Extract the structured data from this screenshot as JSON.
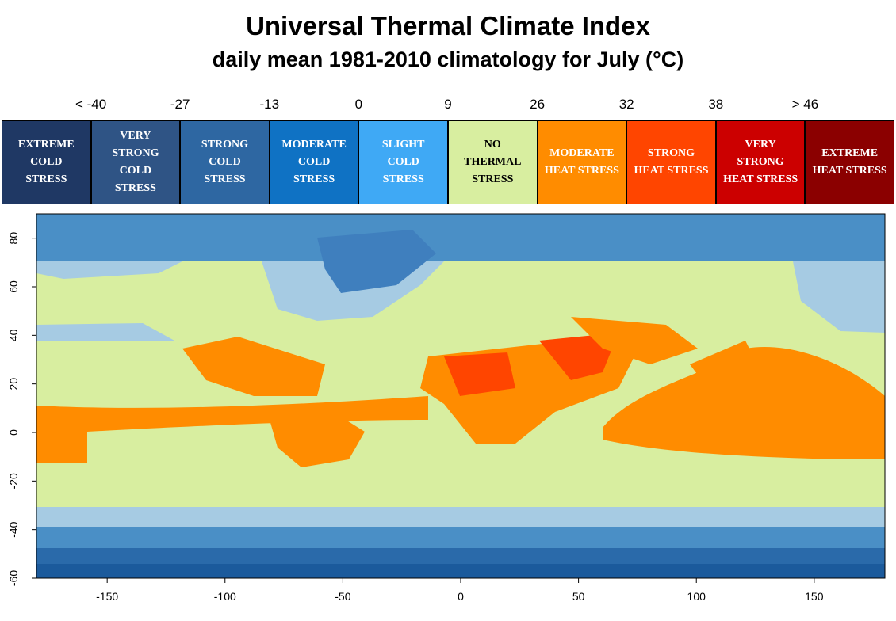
{
  "header": {
    "title": "Universal Thermal Climate Index",
    "subtitle": "daily mean 1981-2010 climatology for July (°C)"
  },
  "legend": {
    "thresholds": [
      "< -40",
      "-27",
      "-13",
      "0",
      "9",
      "26",
      "32",
      "38",
      "> 46"
    ],
    "categories": [
      {
        "label": "EXTREME COLD STRESS",
        "color": "#1f3864"
      },
      {
        "label": "VERY STRONG COLD STRESS",
        "color": "#2f5485"
      },
      {
        "label": "STRONG COLD STRESS",
        "color": "#2e67a2"
      },
      {
        "label": "MODERATE COLD STRESS",
        "color": "#0f72c4"
      },
      {
        "label": "SLIGHT COLD STRESS",
        "color": "#3fa9f5"
      },
      {
        "label": "NO THERMAL STRESS",
        "color": "#d8eea0"
      },
      {
        "label": "MODERATE HEAT STRESS",
        "color": "#ff8c00"
      },
      {
        "label": "STRONG HEAT STRESS",
        "color": "#ff4500"
      },
      {
        "label": "VERY STRONG HEAT STRESS",
        "color": "#cc0000"
      },
      {
        "label": "EXTREME HEAT STRESS",
        "color": "#8b0000"
      }
    ]
  },
  "map": {
    "xlim": [
      -180,
      180
    ],
    "ylim": [
      -60,
      90
    ],
    "xticks": [
      -150,
      -100,
      -50,
      0,
      50,
      100,
      150
    ],
    "yticks": [
      -60,
      -40,
      -20,
      0,
      20,
      40,
      60,
      80
    ]
  }
}
